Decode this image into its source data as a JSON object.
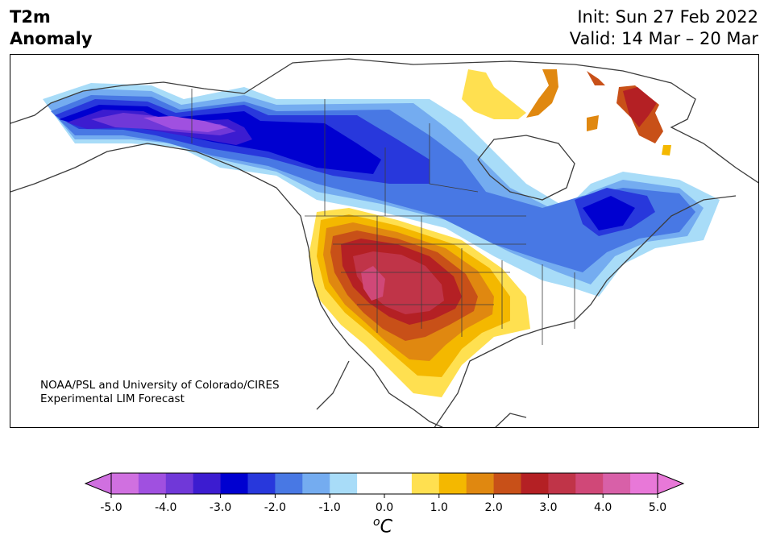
{
  "header": {
    "title_line1": "T2m",
    "title_line2": "Anomaly",
    "init": "Init: Sun 27 Feb 2022",
    "valid": "Valid: 14 Mar – 20 Mar"
  },
  "credit": {
    "line1": "NOAA/PSL and University of Colorado/CIRES",
    "line2": "Experimental LIM Forecast"
  },
  "colorbar": {
    "unit": "℃",
    "unit_display": "oC",
    "ticks": [
      "-5.0",
      "-4.0",
      "-3.0",
      "-2.0",
      "-1.0",
      "0.0",
      "1.0",
      "2.0",
      "3.0",
      "4.0",
      "5.0"
    ],
    "colors": [
      "#d070e0",
      "#a050e0",
      "#7038d8",
      "#3c1cd0",
      "#0000d0",
      "#2838dc",
      "#4878e4",
      "#74acf0",
      "#a8dcf8",
      "#ffffff",
      "#ffffff",
      "#ffe050",
      "#f4b800",
      "#e08810",
      "#c85018",
      "#b42024",
      "#c03448",
      "#d04878",
      "#d860a8",
      "#e878d8"
    ],
    "under_color": "#d070e0",
    "over_color": "#e878d8"
  },
  "map": {
    "region": "North America",
    "anomalies": [
      {
        "area": "Alaska / NW Canada",
        "sign": "cold",
        "peak": -5.0
      },
      {
        "area": "Central Canada / Northern Plains",
        "sign": "cold",
        "peak": -3.0
      },
      {
        "area": "Eastern Canada / Great Lakes",
        "sign": "cold",
        "peak": -3.0
      },
      {
        "area": "US Southwest / Southern Plains",
        "sign": "warm",
        "peak": 4.0
      },
      {
        "area": "Greenland / Baffin",
        "sign": "warm",
        "peak": 3.0
      }
    ]
  }
}
